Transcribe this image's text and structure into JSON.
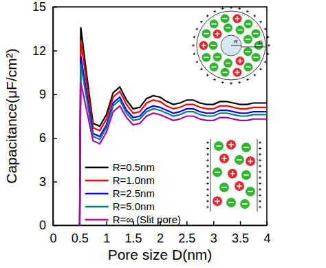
{
  "chart_data": {
    "type": "line",
    "x_label": "Pore size D(nm)",
    "y_label": "Capacitance(μF/cm²)",
    "x": [
      0.5,
      0.52,
      0.625,
      0.75,
      0.875,
      1.0,
      1.125,
      1.25,
      1.375,
      1.5,
      1.625,
      1.75,
      1.875,
      2.0,
      2.125,
      2.25,
      2.375,
      2.5,
      2.625,
      2.75,
      2.875,
      3.0,
      3.125,
      3.25,
      3.375,
      3.5,
      3.625,
      3.75,
      3.875,
      4.0
    ],
    "series": [
      {
        "name": "R=0.5nm",
        "color": "#000000",
        "values": [
          0,
          13.6,
          10.5,
          7.0,
          6.8,
          7.6,
          9.1,
          9.5,
          8.6,
          8.0,
          8.1,
          8.7,
          8.9,
          8.8,
          8.5,
          8.3,
          8.4,
          8.6,
          8.6,
          8.4,
          8.3,
          8.3,
          8.5,
          8.5,
          8.4,
          8.3,
          8.3,
          8.4,
          8.4,
          8.4
        ]
      },
      {
        "name": "R=1.0nm",
        "color": "#ff0000",
        "values": [
          0,
          12.7,
          9.9,
          6.7,
          6.5,
          7.3,
          8.8,
          9.2,
          8.3,
          7.7,
          7.8,
          8.4,
          8.6,
          8.5,
          8.2,
          8.0,
          8.1,
          8.3,
          8.3,
          8.1,
          8.0,
          8.0,
          8.2,
          8.2,
          8.1,
          8.0,
          8.0,
          8.1,
          8.1,
          8.1
        ]
      },
      {
        "name": "R=2.5nm",
        "color": "#0000ff",
        "values": [
          0,
          11.6,
          9.2,
          6.3,
          6.1,
          6.9,
          8.4,
          8.8,
          7.9,
          7.4,
          7.5,
          8.0,
          8.2,
          8.1,
          7.9,
          7.7,
          7.8,
          8.0,
          8.0,
          7.8,
          7.7,
          7.7,
          7.9,
          7.9,
          7.8,
          7.7,
          7.7,
          7.8,
          7.8,
          7.8
        ]
      },
      {
        "name": "R=5.0nm",
        "color": "#008080",
        "values": [
          0,
          11.1,
          8.8,
          6.1,
          5.9,
          6.7,
          8.2,
          8.6,
          7.7,
          7.2,
          7.3,
          7.8,
          8.0,
          7.9,
          7.7,
          7.5,
          7.6,
          7.8,
          7.8,
          7.6,
          7.5,
          7.5,
          7.7,
          7.7,
          7.6,
          7.5,
          7.5,
          7.6,
          7.6,
          7.6
        ]
      },
      {
        "name": "R=∞ (Slit pore)",
        "color": "#b000b0",
        "values": [
          0,
          9.8,
          8.0,
          5.8,
          5.6,
          6.4,
          7.8,
          8.2,
          7.4,
          6.9,
          7.0,
          7.5,
          7.7,
          7.6,
          7.4,
          7.2,
          7.3,
          7.5,
          7.5,
          7.3,
          7.2,
          7.2,
          7.4,
          7.4,
          7.3,
          7.2,
          7.2,
          7.3,
          7.3,
          7.3
        ]
      }
    ],
    "xlim": [
      0,
      4
    ],
    "xticks": [
      0,
      0.5,
      1,
      1.5,
      2,
      2.5,
      3,
      3.5,
      4
    ],
    "ylim": [
      0,
      15
    ],
    "yticks": [
      0,
      3,
      6,
      9,
      12,
      15
    ],
    "legend": "lower left",
    "grid": false,
    "annotations": [
      "R",
      "D"
    ]
  }
}
